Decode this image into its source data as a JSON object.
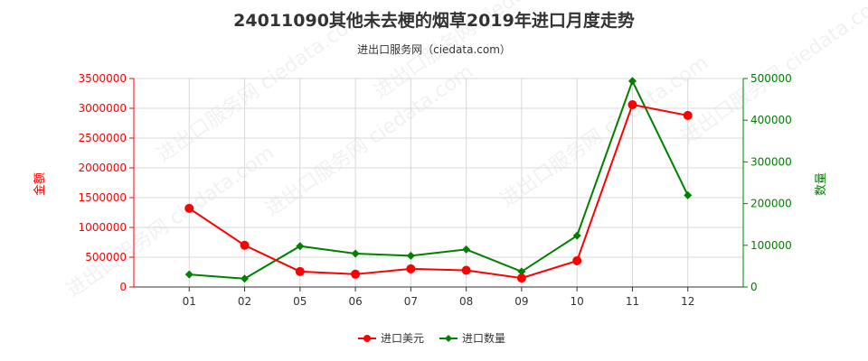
{
  "title": "24011090其他未去梗的烟草2019年进口月度走势",
  "subtitle": "进出口服务网（ciedata.com）",
  "watermark": "进出口服务网 ciedata.com",
  "chart_data": {
    "type": "line",
    "categories": [
      "01",
      "02",
      "05",
      "06",
      "07",
      "08",
      "09",
      "10",
      "11",
      "12"
    ],
    "series": [
      {
        "name": "进口美元",
        "axis": "left",
        "color": "#ff0000",
        "values": [
          1320000,
          700000,
          260000,
          215000,
          305000,
          280000,
          150000,
          440000,
          3060000,
          2880000
        ]
      },
      {
        "name": "进口数量",
        "axis": "right",
        "color": "#008000",
        "values": [
          30000,
          20000,
          98000,
          80000,
          75000,
          90000,
          37000,
          123000,
          494000,
          220000
        ]
      }
    ],
    "y_left": {
      "label": "金额",
      "ylim": [
        0,
        3500000
      ],
      "ticks": [
        "0",
        "500000",
        "1000000",
        "1500000",
        "2000000",
        "2500000",
        "3000000",
        "3500000"
      ]
    },
    "y_right": {
      "label": "数量",
      "ylim": [
        0,
        500000
      ],
      "ticks": [
        "0",
        "100000",
        "200000",
        "300000",
        "400000",
        "500000"
      ]
    },
    "grid": true,
    "legend": "bottom-center"
  }
}
